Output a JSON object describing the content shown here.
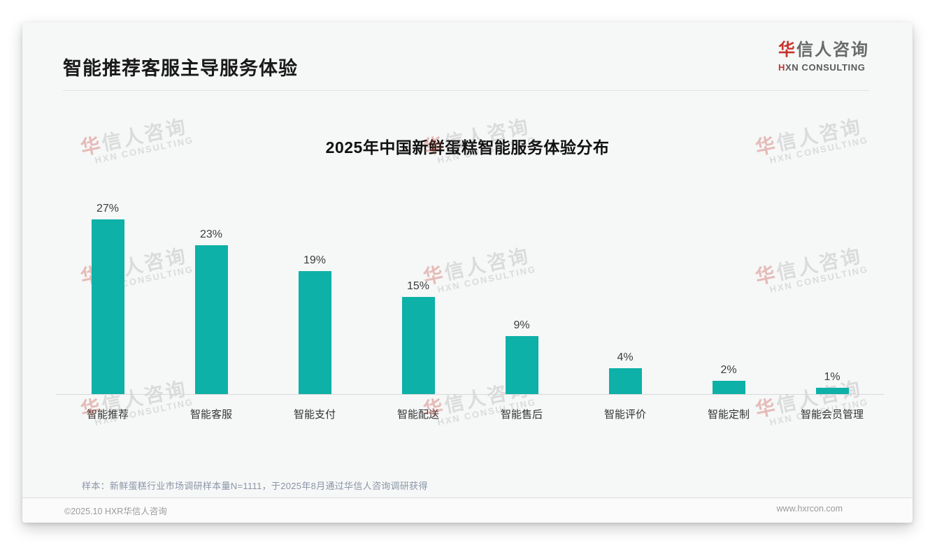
{
  "page": {
    "slide_title": "智能推荐客服主导服务体验",
    "logo": {
      "cn_first": "华",
      "cn_rest": "信人咨询",
      "en_first": "H",
      "en_rest": "XN CONSULTING"
    },
    "watermark": {
      "cn_first": "华",
      "cn_rest": "信人咨询",
      "en": "HXN CONSULTING"
    },
    "footnote": "样本：新鲜蛋糕行业市场调研样本量N=1111，于2025年8月通过华信人咨询调研获得",
    "footer_left": "©2025.10 HXR华信人咨询",
    "footer_right": "www.hxrcon.com"
  },
  "colors": {
    "bar_teal": "#0db1a7",
    "logo_red": "#c5342b",
    "title_black": "#1a1a1a",
    "footnote_gray_blue": "#8a96a6"
  },
  "chart_data": {
    "type": "bar",
    "title": "2025年中国新鲜蛋糕智能服务体验分布",
    "categories": [
      "智能推荐",
      "智能客服",
      "智能支付",
      "智能配送",
      "智能售后",
      "智能评价",
      "智能定制",
      "智能会员管理"
    ],
    "values": [
      27,
      23,
      19,
      15,
      9,
      4,
      2,
      1
    ],
    "value_labels": [
      "27%",
      "23%",
      "19%",
      "15%",
      "9%",
      "4%",
      "2%",
      "1%"
    ],
    "unit": "%",
    "ylim": [
      0,
      30
    ],
    "grid": false,
    "legend": "none",
    "bar_color": "#0db1a7"
  }
}
